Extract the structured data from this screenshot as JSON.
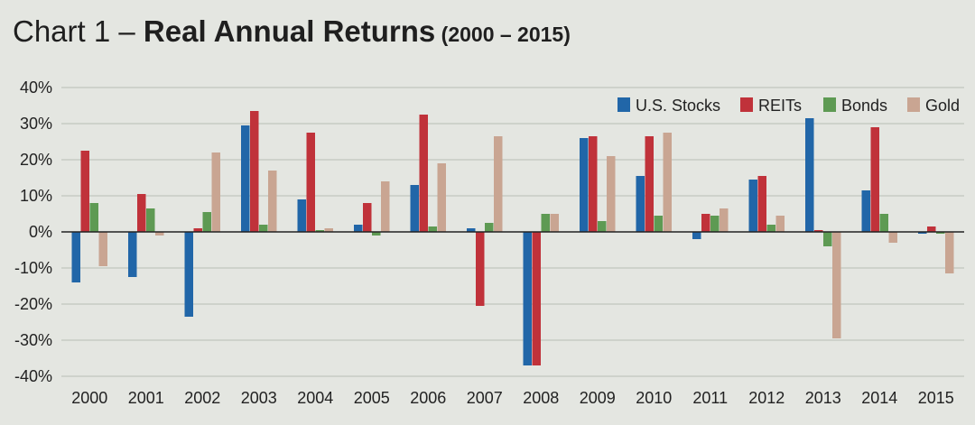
{
  "title": {
    "prefix": "Chart 1 – ",
    "main": "Real Annual Returns",
    "range": " (2000 – 2015)"
  },
  "chart_data": {
    "type": "bar",
    "categories": [
      "2000",
      "2001",
      "2002",
      "2003",
      "2004",
      "2005",
      "2006",
      "2007",
      "2008",
      "2009",
      "2010",
      "2011",
      "2012",
      "2013",
      "2014",
      "2015"
    ],
    "series": [
      {
        "name": "U.S. Stocks",
        "color": "#2166a8",
        "values": [
          -14,
          -12.5,
          -23.5,
          29.5,
          9,
          2,
          13,
          1,
          -37,
          26,
          15.5,
          -2,
          14.5,
          31.5,
          11.5,
          -0.5
        ]
      },
      {
        "name": "REITs",
        "color": "#c0323a",
        "values": [
          22.5,
          10.5,
          1,
          33.5,
          27.5,
          8,
          32.5,
          -20.5,
          -37,
          26.5,
          26.5,
          5,
          15.5,
          0.5,
          29,
          1.5
        ]
      },
      {
        "name": "Bonds",
        "color": "#5e9a53",
        "values": [
          8,
          6.5,
          5.5,
          2,
          0.5,
          -1,
          1.5,
          2.5,
          5,
          3,
          4.5,
          4.5,
          2,
          -4,
          5,
          -0.5
        ]
      },
      {
        "name": "Gold",
        "color": "#c9a592",
        "values": [
          -9.5,
          -1,
          22,
          17,
          1,
          14,
          19,
          26.5,
          5,
          21,
          27.5,
          6.5,
          4.5,
          -29.5,
          -3,
          -11.5
        ]
      }
    ],
    "yticks": [
      "40%",
      "30%",
      "20%",
      "10%",
      "0%",
      "-10%",
      "-20%",
      "-30%",
      "-40%"
    ],
    "ylim": [
      -40,
      40
    ],
    "ystep": 10,
    "grid": true,
    "legend_position": "top-right"
  }
}
